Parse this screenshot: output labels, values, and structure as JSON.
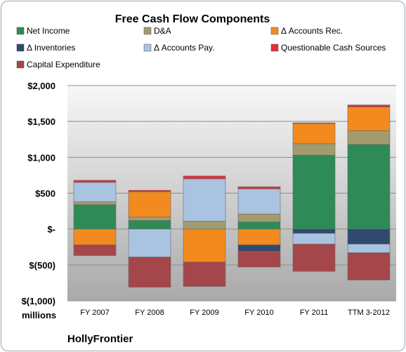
{
  "chart_data": {
    "type": "bar",
    "stacked": true,
    "title": "Free Cash Flow Components",
    "ylabel": "millions",
    "footer": "HollyFrontier",
    "ylim": [
      -1000,
      2000
    ],
    "yticks": [
      -1000,
      -500,
      0,
      500,
      1000,
      1500,
      2000
    ],
    "ytick_labels": [
      "$(1,000)",
      "$(500)",
      "$-",
      "$500",
      "$1,000",
      "$1,500",
      "$2,000"
    ],
    "categories": [
      "FY 2007",
      "FY 2008",
      "FY 2009",
      "FY 2010",
      "FY 2011",
      "TTM 3-2012"
    ],
    "legend_position": "top",
    "grid": true,
    "series": [
      {
        "name": "Net Income",
        "color": "#2e8b57",
        "values": [
          340,
          120,
          0,
          100,
          1030,
          1180
        ]
      },
      {
        "name": "D&A",
        "color": "#a39a6e",
        "values": [
          40,
          50,
          110,
          110,
          160,
          190
        ]
      },
      {
        "name": "Δ Accounts Rec.",
        "color": "#f28a1e",
        "values": [
          -220,
          350,
          -460,
          -220,
          280,
          330
        ]
      },
      {
        "name": "Δ Inventories",
        "color": "#2f4a6e",
        "values": [
          0,
          0,
          0,
          -90,
          -60,
          -210
        ]
      },
      {
        "name": "Δ Accounts Pay.",
        "color": "#a9c3e0",
        "values": [
          270,
          -390,
          590,
          350,
          -150,
          -120
        ]
      },
      {
        "name": "Questionable Cash Sources",
        "color": "#e0303a",
        "values": [
          30,
          20,
          40,
          30,
          10,
          30
        ]
      },
      {
        "name": "Capital Expenditure",
        "color": "#a5464a",
        "values": [
          -150,
          -420,
          -340,
          -220,
          -380,
          -380
        ]
      }
    ]
  }
}
